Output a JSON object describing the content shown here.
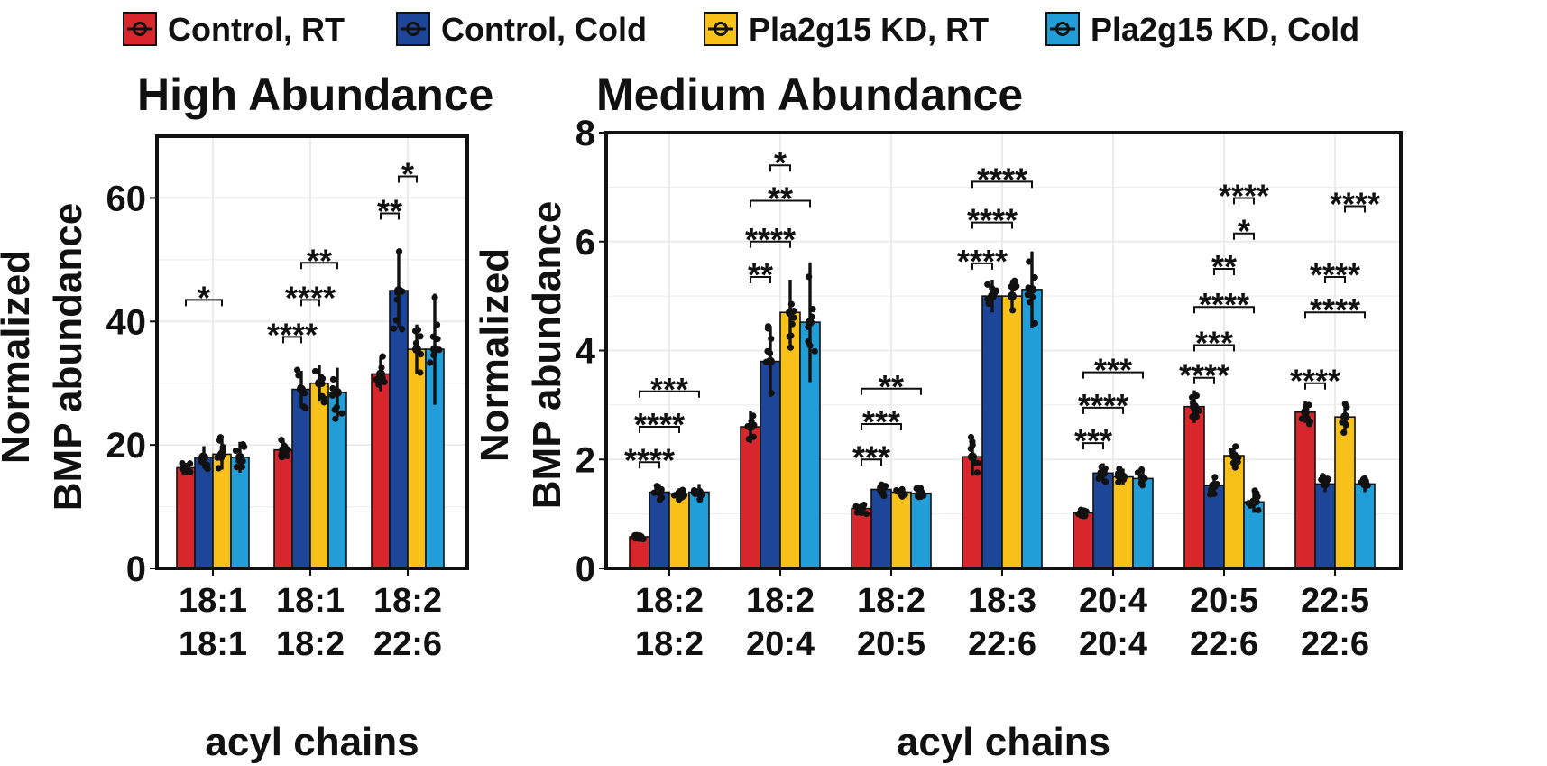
{
  "legend": [
    {
      "label": "Control, RT",
      "color": "#D7262C"
    },
    {
      "label": "Control, Cold",
      "color": "#1D4699"
    },
    {
      "label": "Pla2g15 KD, RT",
      "color": "#F8C11A"
    },
    {
      "label": "Pla2g15 KD, Cold",
      "color": "#219ED8"
    }
  ],
  "chart_data": [
    {
      "type": "bar",
      "title": "High Abundance",
      "ylabel_line1": "Normalized",
      "ylabel_line2": "BMP abundance",
      "xlabel": "acyl chains",
      "ylim": [
        0,
        70
      ],
      "yticks": [
        "0",
        "20",
        "40",
        "60"
      ],
      "categories": [
        [
          "18:1",
          "18:1"
        ],
        [
          "18:1",
          "18:2"
        ],
        [
          "18:2",
          "22:6"
        ]
      ],
      "series": [
        {
          "name": "Control, RT",
          "values": [
            16.3,
            19.2,
            31.5
          ],
          "errors": [
            0.8,
            1.6,
            2.8
          ]
        },
        {
          "name": "Control, Cold",
          "values": [
            18.0,
            29.0,
            45.0
          ],
          "errors": [
            1.8,
            3.0,
            6.0
          ]
        },
        {
          "name": "Pla2g15 KD, RT",
          "values": [
            18.5,
            30.0,
            35.5
          ],
          "errors": [
            2.5,
            3.0,
            4.0
          ]
        },
        {
          "name": "Pla2g15 KD, Cold",
          "values": [
            18.0,
            28.5,
            35.5
          ],
          "errors": [
            2.5,
            4.0,
            9.0
          ]
        }
      ],
      "significance": [
        {
          "group": 0,
          "from": 0,
          "to": 2,
          "label": "*",
          "level": 43.5
        },
        {
          "group": 1,
          "from": 0,
          "to": 1,
          "label": "****",
          "level": 37.5
        },
        {
          "group": 1,
          "from": 1,
          "to": 2,
          "label": "****",
          "level": 43.5
        },
        {
          "group": 1,
          "from": 1,
          "to": 3,
          "label": "**",
          "level": 49.5
        },
        {
          "group": 2,
          "from": 0,
          "to": 1,
          "label": "**",
          "level": 57.5
        },
        {
          "group": 2,
          "from": 1,
          "to": 2,
          "label": "*",
          "level": 63.5
        }
      ]
    },
    {
      "type": "bar",
      "title": "Medium Abundance",
      "ylabel_line1": "Normalized",
      "ylabel_line2": "BMP abundance",
      "xlabel": "acyl chains",
      "ylim": [
        0,
        8
      ],
      "yticks": [
        "0",
        "2",
        "4",
        "6",
        "8"
      ],
      "categories": [
        [
          "18:2",
          "18:2"
        ],
        [
          "18:2",
          "20:4"
        ],
        [
          "18:2",
          "20:5"
        ],
        [
          "18:3",
          "22:6"
        ],
        [
          "20:4",
          "20:4"
        ],
        [
          "20:5",
          "22:6"
        ],
        [
          "22:5",
          "22:6"
        ]
      ],
      "series": [
        {
          "name": "Control, RT",
          "values": [
            0.58,
            2.6,
            1.1,
            2.05,
            1.02,
            2.97,
            2.87
          ],
          "errors": [
            0.05,
            0.3,
            0.1,
            0.35,
            0.06,
            0.3,
            0.2
          ]
        },
        {
          "name": "Control, Cold",
          "values": [
            1.4,
            3.8,
            1.45,
            5.0,
            1.75,
            1.52,
            1.55
          ],
          "errors": [
            0.15,
            0.65,
            0.12,
            0.3,
            0.18,
            0.2,
            0.15
          ]
        },
        {
          "name": "Pla2g15 KD, RT",
          "values": [
            1.37,
            4.7,
            1.4,
            5.0,
            1.68,
            2.07,
            2.78
          ],
          "errors": [
            0.1,
            0.6,
            0.08,
            0.3,
            0.15,
            0.2,
            0.3
          ]
        },
        {
          "name": "Pla2g15 KD, Cold",
          "values": [
            1.4,
            4.52,
            1.38,
            5.12,
            1.65,
            1.22,
            1.55
          ],
          "errors": [
            0.15,
            1.1,
            0.12,
            0.7,
            0.15,
            0.2,
            0.15
          ]
        }
      ],
      "significance": [
        {
          "group": 0,
          "from": 0,
          "to": 1,
          "label": "****",
          "level": 1.95
        },
        {
          "group": 0,
          "from": 0,
          "to": 2,
          "label": "****",
          "level": 2.6
        },
        {
          "group": 0,
          "from": 0,
          "to": 3,
          "label": "***",
          "level": 3.25
        },
        {
          "group": 1,
          "from": 0,
          "to": 1,
          "label": "**",
          "level": 5.35
        },
        {
          "group": 1,
          "from": 0,
          "to": 2,
          "label": "****",
          "level": 6.0
        },
        {
          "group": 1,
          "from": 0,
          "to": 3,
          "label": "**",
          "level": 6.75
        },
        {
          "group": 1,
          "from": 1,
          "to": 2,
          "label": "*",
          "level": 7.4
        },
        {
          "group": 2,
          "from": 0,
          "to": 1,
          "label": "***",
          "level": 2.0
        },
        {
          "group": 2,
          "from": 0,
          "to": 2,
          "label": "***",
          "level": 2.65
        },
        {
          "group": 2,
          "from": 0,
          "to": 3,
          "label": "**",
          "level": 3.3
        },
        {
          "group": 3,
          "from": 0,
          "to": 1,
          "label": "****",
          "level": 5.6
        },
        {
          "group": 3,
          "from": 0,
          "to": 2,
          "label": "****",
          "level": 6.35
        },
        {
          "group": 3,
          "from": 0,
          "to": 3,
          "label": "****",
          "level": 7.1
        },
        {
          "group": 4,
          "from": 0,
          "to": 1,
          "label": "***",
          "level": 2.3
        },
        {
          "group": 4,
          "from": 0,
          "to": 2,
          "label": "****",
          "level": 2.95
        },
        {
          "group": 4,
          "from": 0,
          "to": 3,
          "label": "***",
          "level": 3.6
        },
        {
          "group": 5,
          "from": 0,
          "to": 1,
          "label": "****",
          "level": 3.5
        },
        {
          "group": 5,
          "from": 0,
          "to": 2,
          "label": "***",
          "level": 4.1
        },
        {
          "group": 5,
          "from": 0,
          "to": 3,
          "label": "****",
          "level": 4.8
        },
        {
          "group": 5,
          "from": 1,
          "to": 2,
          "label": "**",
          "level": 5.5
        },
        {
          "group": 5,
          "from": 2,
          "to": 3,
          "label": "*",
          "level": 6.15
        },
        {
          "group": 5,
          "from": 2,
          "to": 3,
          "label": "****",
          "level": 6.8
        },
        {
          "group": 6,
          "from": 0,
          "to": 1,
          "label": "****",
          "level": 3.4
        },
        {
          "group": 6,
          "from": 0,
          "to": 3,
          "label": "****",
          "level": 4.7
        },
        {
          "group": 6,
          "from": 1,
          "to": 2,
          "label": "****",
          "level": 5.35
        },
        {
          "group": 6,
          "from": 2,
          "to": 3,
          "label": "****",
          "level": 6.65
        }
      ]
    }
  ]
}
